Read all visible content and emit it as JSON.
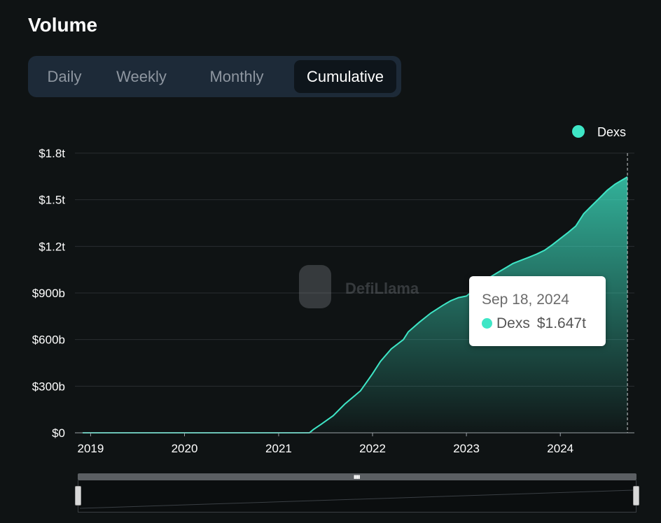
{
  "header": {
    "title": "Volume"
  },
  "tabs": [
    {
      "label": "Daily",
      "active": false
    },
    {
      "label": "Weekly",
      "active": false
    },
    {
      "label": "Monthly",
      "active": false
    },
    {
      "label": "Cumulative",
      "active": true
    }
  ],
  "colors": {
    "series": "#3ee6c6",
    "background": "#0f1314",
    "tabs_bg": "#1d2a38"
  },
  "watermark": {
    "text": "DefiLlama",
    "icon": "defillama-logo"
  },
  "tooltip": {
    "date": "Sep 18, 2024",
    "series": "Dexs",
    "value": "$1.647t"
  },
  "chart_data": {
    "type": "area",
    "title": "Volume",
    "xlabel": "",
    "ylabel": "",
    "series": [
      {
        "name": "Dexs",
        "x": [
          "2018-12-01",
          "2021-05-01",
          "2021-05-15",
          "2021-06-15",
          "2021-08-01",
          "2021-09-15",
          "2021-11-15",
          "2021-12-15",
          "2022-01-01",
          "2022-02-01",
          "2022-03-15",
          "2022-05-01",
          "2022-05-20",
          "2022-07-01",
          "2022-08-15",
          "2022-10-01",
          "2022-11-01",
          "2022-12-01",
          "2023-01-01",
          "2023-02-01",
          "2023-03-01",
          "2023-04-01",
          "2023-05-01",
          "2023-06-01",
          "2023-07-01",
          "2023-08-01",
          "2023-09-01",
          "2023-10-01",
          "2023-11-01",
          "2023-12-01",
          "2024-01-01",
          "2024-02-01",
          "2024-03-01",
          "2024-04-01",
          "2024-05-01",
          "2024-06-01",
          "2024-07-01",
          "2024-08-01",
          "2024-09-18"
        ],
        "values_billion": [
          0,
          0,
          20,
          55,
          110,
          185,
          270,
          340,
          380,
          460,
          540,
          600,
          650,
          710,
          770,
          820,
          850,
          870,
          880,
          920,
          960,
          1000,
          1030,
          1060,
          1090,
          1110,
          1130,
          1150,
          1175,
          1210,
          1250,
          1290,
          1330,
          1410,
          1460,
          1510,
          1560,
          1600,
          1647
        ]
      }
    ],
    "x_ticks": [
      "2019",
      "2020",
      "2021",
      "2022",
      "2023",
      "2024"
    ],
    "y_ticks": [
      "$0",
      "$300b",
      "$600b",
      "$900b",
      "$1.2t",
      "$1.5t",
      "$1.8t"
    ],
    "y_tick_values_billion": [
      0,
      300,
      600,
      900,
      1200,
      1500,
      1800
    ],
    "ylim": [
      0,
      1800
    ],
    "xlim": [
      "2018-11-01",
      "2024-10-15"
    ],
    "grid": true,
    "legend": {
      "position": "top-right",
      "entries": [
        "Dexs"
      ]
    },
    "crosshair_x": "2024-09-18"
  }
}
